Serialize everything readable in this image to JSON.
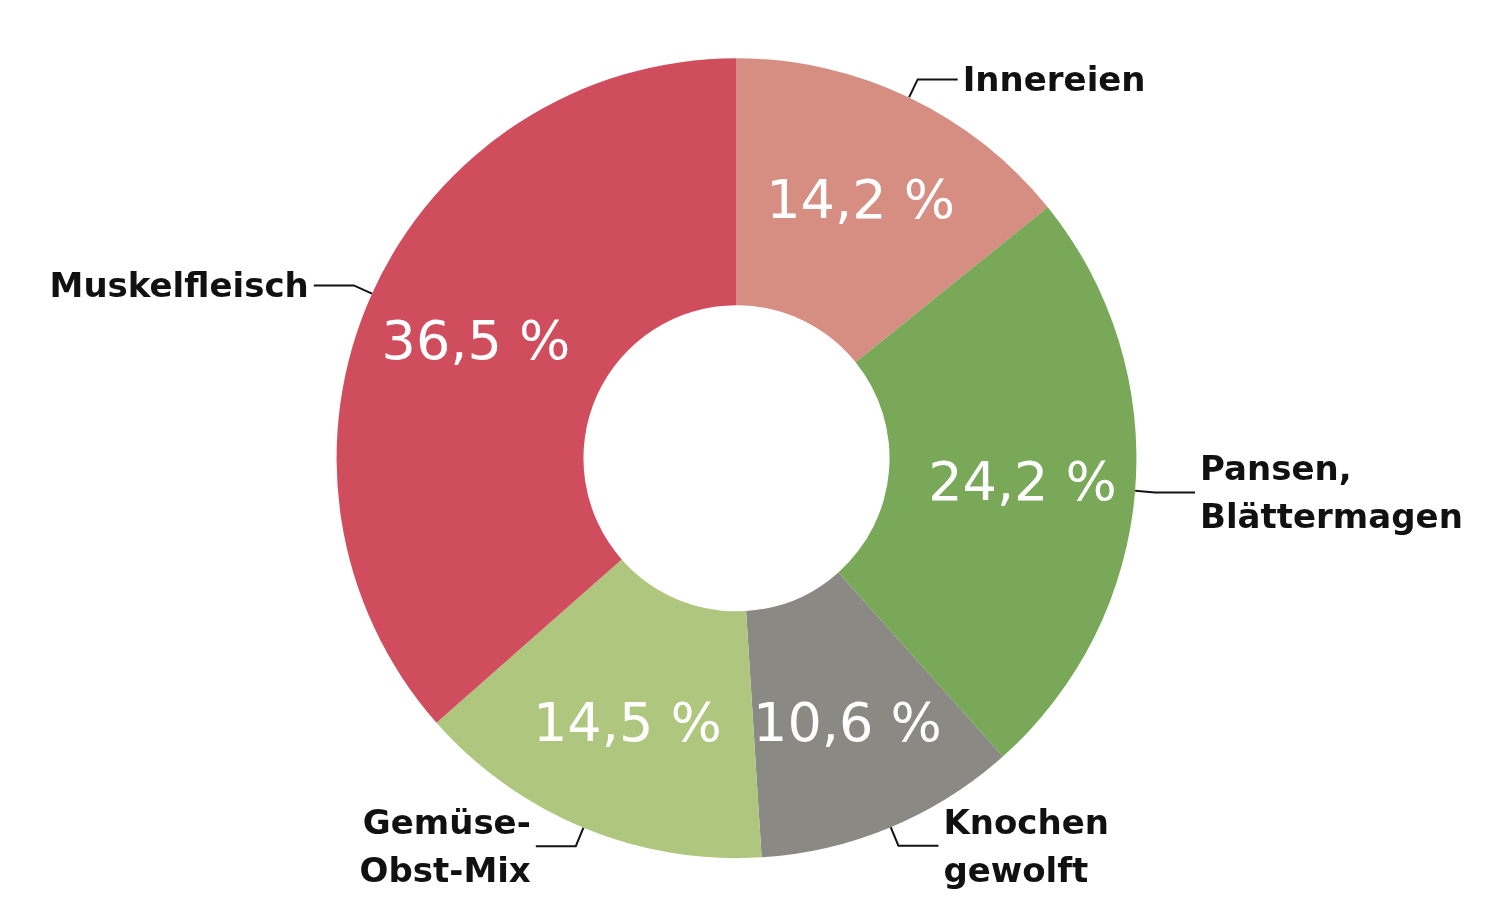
{
  "chart_data": {
    "type": "donut",
    "categories": [
      "Innereien",
      "Pansen,\nBlättermagen",
      "Knochen\ngewolft",
      "Gemüse-\nObst-Mix",
      "Muskelfleisch"
    ],
    "values": [
      14.2,
      24.2,
      10.6,
      14.5,
      36.5
    ],
    "value_labels": [
      "14,2 %",
      "24,2 %",
      "10,6 %",
      "14,5 %",
      "36,5 %"
    ],
    "colors": [
      "#d68e83",
      "#78a858",
      "#8a8984",
      "#aec67e",
      "#d04d5e"
    ],
    "legend": false
  }
}
